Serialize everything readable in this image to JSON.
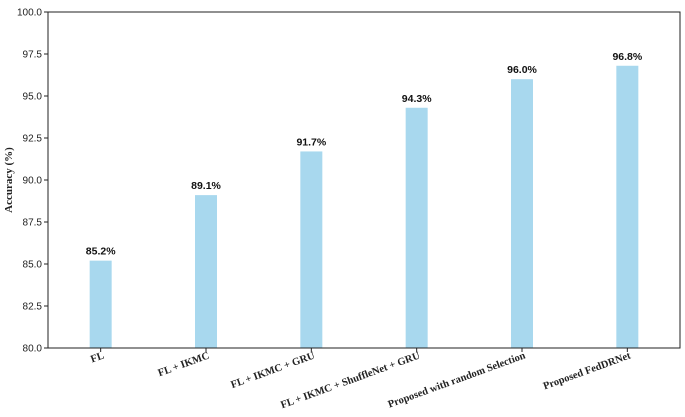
{
  "chart_data": {
    "type": "bar",
    "title": "",
    "xlabel": "",
    "ylabel": "Accuracy (%)",
    "ylim": [
      80.0,
      100.0
    ],
    "yticks": [
      "80.0",
      "82.5",
      "85.0",
      "87.5",
      "90.0",
      "92.5",
      "95.0",
      "97.5",
      "100.0"
    ],
    "categories": [
      "FL",
      "FL + IKMC",
      "FL + IKMC + GRU",
      "FL + IKMC + ShuffleNet + GRU",
      "Proposed with random Selection",
      "Proposed FedDRNet"
    ],
    "values": [
      85.2,
      89.1,
      91.7,
      94.3,
      96.0,
      96.8
    ],
    "data_labels": [
      "85.2%",
      "89.1%",
      "91.7%",
      "94.3%",
      "96.0%",
      "96.8%"
    ],
    "bar_color": "#a8d8ee",
    "grid": false,
    "legend": "none"
  }
}
